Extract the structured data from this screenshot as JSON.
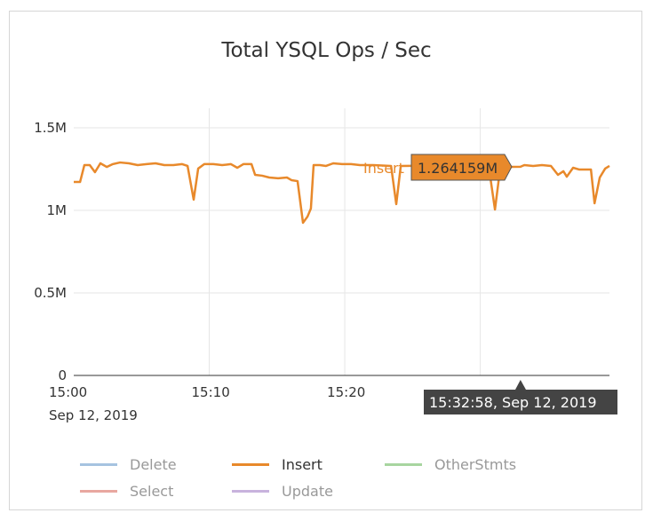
{
  "chart_data": {
    "type": "line",
    "title": "Total YSQL Ops / Sec",
    "xlim": [
      "15:00:00",
      "15:39:32"
    ],
    "ylim": [
      0,
      1500000
    ],
    "yticks": [
      0,
      500000,
      1000000,
      1500000
    ],
    "ytick_labels": [
      "0",
      "0.5M",
      "1M",
      "1.5M"
    ],
    "xticks": [
      "15:00:00",
      "15:10:00",
      "15:20:00"
    ],
    "xtick_labels": [
      "15:00",
      "15:10",
      "15:20"
    ],
    "xtick_sublabel": "Sep 12, 2019",
    "grid": true,
    "legend_position": "bottom",
    "series": [
      {
        "name": "Delete",
        "color": "#a6c3e0",
        "values": []
      },
      {
        "name": "Insert",
        "color": "#e8892b",
        "x": [
          "15:00:00",
          "15:00:28",
          "15:00:47",
          "15:01:11",
          "15:01:34",
          "15:01:58",
          "15:02:26",
          "15:02:53",
          "15:03:25",
          "15:04:04",
          "15:04:43",
          "15:05:23",
          "15:06:02",
          "15:06:41",
          "15:07:21",
          "15:08:00",
          "15:08:24",
          "15:08:51",
          "15:09:11",
          "15:09:38",
          "15:10:18",
          "15:10:57",
          "15:11:36",
          "15:12:04",
          "15:12:31",
          "15:13:07",
          "15:13:23",
          "15:13:54",
          "15:14:26",
          "15:15:05",
          "15:15:44",
          "15:16:04",
          "15:16:31",
          "15:16:55",
          "15:17:15",
          "15:17:30",
          "15:17:42",
          "15:18:10",
          "15:18:37",
          "15:19:09",
          "15:19:48",
          "15:20:28",
          "15:21:07",
          "15:22:06",
          "15:23:25",
          "15:23:48",
          "15:24:08",
          "15:25:23",
          "15:27:20",
          "15:29:19",
          "15:30:37",
          "15:31:05",
          "15:31:29",
          "15:32:58",
          "15:33:15",
          "15:33:54",
          "15:34:33",
          "15:35:13",
          "15:35:44",
          "15:36:08",
          "15:36:23",
          "15:36:51",
          "15:37:19",
          "15:37:50",
          "15:38:10",
          "15:38:26",
          "15:38:49",
          "15:39:13",
          "15:39:32"
        ],
        "values": [
          1172000,
          1172000,
          1274000,
          1274000,
          1231000,
          1285000,
          1263000,
          1280000,
          1290000,
          1285000,
          1274000,
          1280000,
          1285000,
          1274000,
          1274000,
          1280000,
          1269000,
          1065000,
          1253000,
          1280000,
          1280000,
          1274000,
          1280000,
          1258000,
          1280000,
          1280000,
          1215000,
          1210000,
          1199000,
          1194000,
          1199000,
          1183000,
          1177000,
          925000,
          962000,
          1011000,
          1274000,
          1274000,
          1269000,
          1285000,
          1280000,
          1280000,
          1274000,
          1274000,
          1269000,
          1038000,
          1269000,
          1270000,
          1270000,
          1270000,
          1270000,
          1005000,
          1263000,
          1264159,
          1274000,
          1269000,
          1274000,
          1269000,
          1215000,
          1237000,
          1204000,
          1258000,
          1247000,
          1247000,
          1247000,
          1043000,
          1199000,
          1253000,
          1269000
        ]
      },
      {
        "name": "OtherStmts",
        "color": "#a8d5a0",
        "values": []
      },
      {
        "name": "Select",
        "color": "#e8a7a0",
        "values": []
      },
      {
        "name": "Update",
        "color": "#c8b3dd",
        "values": []
      }
    ],
    "tooltip": {
      "series": "Insert",
      "value_label": "1.264159M",
      "time_label": "15:32:58, Sep 12, 2019",
      "x": "15:32:58",
      "value": 1264159
    }
  }
}
